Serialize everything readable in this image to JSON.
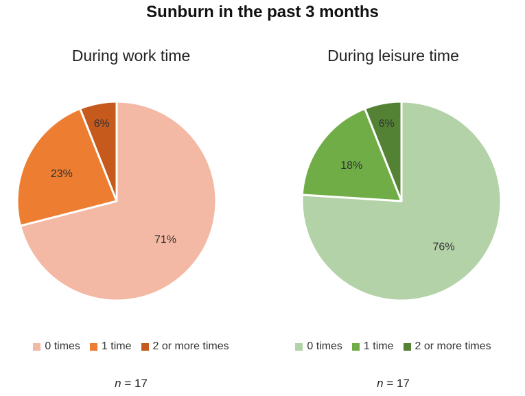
{
  "title": "Sunburn in the past 3 months",
  "chart_data": [
    {
      "type": "pie",
      "title": "During work time",
      "categories": [
        "0 times",
        "1 time",
        "2 or more times"
      ],
      "values": [
        71,
        23,
        6
      ],
      "labels": [
        "71%",
        "23%",
        "6%"
      ],
      "colors": [
        "#f4b9a5",
        "#ed7d31",
        "#c55a1c"
      ],
      "legend_placement": "bottom",
      "n_symbol": "n",
      "n_value": "= 17"
    },
    {
      "type": "pie",
      "title": "During leisure time",
      "categories": [
        "0 times",
        "1 time",
        "2 or more times"
      ],
      "values": [
        76,
        18,
        6
      ],
      "labels": [
        "76%",
        "18%",
        "6%"
      ],
      "colors": [
        "#b4d2a8",
        "#70ad47",
        "#548235"
      ],
      "legend_placement": "bottom",
      "n_symbol": "n",
      "n_value": "= 17"
    }
  ]
}
